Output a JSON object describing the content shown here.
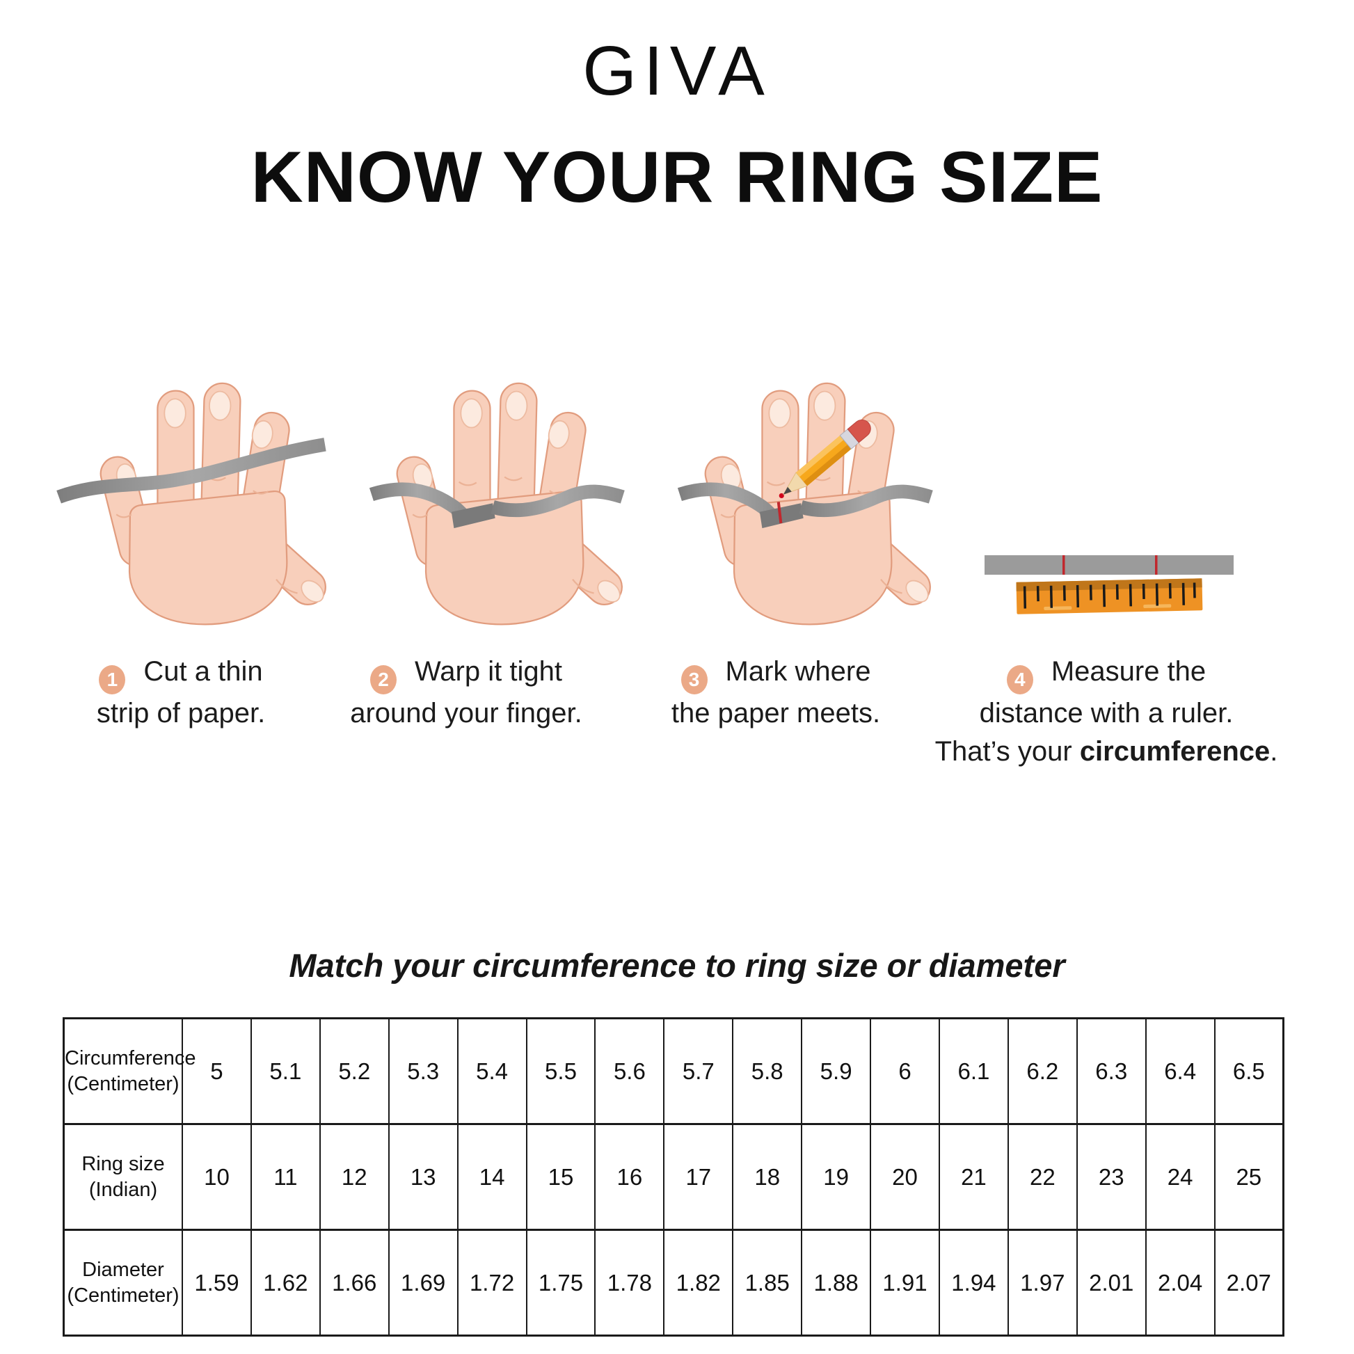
{
  "brand": {
    "logo_text": "GIVA"
  },
  "title": "KNOW YOUR RING SIZE",
  "steps": [
    {
      "number": "1",
      "lines": [
        "Cut a thin",
        "strip of paper."
      ]
    },
    {
      "number": "2",
      "lines": [
        "Warp it tight",
        "around your finger."
      ]
    },
    {
      "number": "3",
      "lines": [
        "Mark where",
        "the paper meets."
      ]
    },
    {
      "number": "4",
      "lines": [
        "Measure the",
        "distance with a ruler."
      ],
      "line3": {
        "prefix": "That’s your ",
        "bold": "circumference",
        "suffix": "."
      }
    }
  ],
  "section": {
    "heading": "Match your circumference to ring size or diameter"
  },
  "table": {
    "rows": [
      {
        "label_line1": "Circumference",
        "label_line2": "(Centimeter)",
        "values": [
          "5",
          "5.1",
          "5.2",
          "5.3",
          "5.4",
          "5.5",
          "5.6",
          "5.7",
          "5.8",
          "5.9",
          "6",
          "6.1",
          "6.2",
          "6.3",
          "6.4",
          "6.5"
        ]
      },
      {
        "label_line1": "Ring size",
        "label_line2": "(Indian)",
        "values": [
          "10",
          "11",
          "12",
          "13",
          "14",
          "15",
          "16",
          "17",
          "18",
          "19",
          "20",
          "21",
          "22",
          "23",
          "24",
          "25"
        ]
      },
      {
        "label_line1": "Diameter",
        "label_line2": "(Centimeter)",
        "values": [
          "1.59",
          "1.62",
          "1.66",
          "1.69",
          "1.72",
          "1.75",
          "1.78",
          "1.82",
          "1.85",
          "1.88",
          "1.91",
          "1.94",
          "1.97",
          "2.01",
          "2.04",
          "2.07"
        ]
      }
    ]
  },
  "colors": {
    "skin": "#F8CFBB",
    "skin_outline": "#E19C7E",
    "nail": "#FCEADF",
    "paper_strip_gray": "#8E8E8E",
    "badge_peach": "#EBA987",
    "ruler_orange": "#EE9224",
    "ruler_orange_dark": "#C0761A",
    "pencil_yellow": "#F7A81C",
    "pencil_eraser_red": "#D6554C",
    "mark_red": "#C1272D",
    "text": "#111111"
  }
}
